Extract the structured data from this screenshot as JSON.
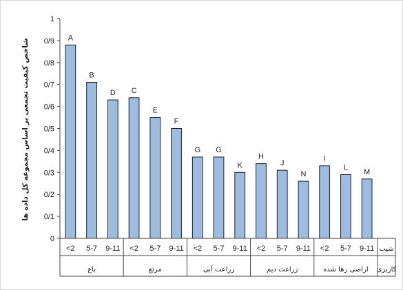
{
  "chart_data": {
    "type": "bar",
    "title": "",
    "ylabel": "شاخص کیفیت تجمعی بر اساس مجموعه کل داده ها",
    "ylim": [
      0,
      1
    ],
    "yticks": [
      "0",
      "0/1",
      "0/2",
      "0/3",
      "0/4",
      "0/5",
      "0/6",
      "0/7",
      "0/8",
      "0/9",
      "1"
    ],
    "slope_row_label": "شیب",
    "landuse_row_label": "کاربری",
    "bar_color": "#9dbce0",
    "groups": [
      {
        "name": "باغ",
        "bars": [
          {
            "slope": "<2",
            "value": 0.88,
            "letter": "A"
          },
          {
            "slope": "5-7",
            "value": 0.71,
            "letter": "B"
          },
          {
            "slope": "9-11",
            "value": 0.63,
            "letter": "D"
          }
        ]
      },
      {
        "name": "مرتع",
        "bars": [
          {
            "slope": "<2",
            "value": 0.64,
            "letter": "C"
          },
          {
            "slope": "5-7",
            "value": 0.55,
            "letter": "E"
          },
          {
            "slope": "9-11",
            "value": 0.5,
            "letter": "F"
          }
        ]
      },
      {
        "name": "زراعت آبی",
        "bars": [
          {
            "slope": "<2",
            "value": 0.37,
            "letter": "G"
          },
          {
            "slope": "5-7",
            "value": 0.37,
            "letter": "G"
          },
          {
            "slope": "9-11",
            "value": 0.3,
            "letter": "K"
          }
        ]
      },
      {
        "name": "زراعت دیم",
        "bars": [
          {
            "slope": "<2",
            "value": 0.34,
            "letter": "H"
          },
          {
            "slope": "5-7",
            "value": 0.31,
            "letter": "J"
          },
          {
            "slope": "9-11",
            "value": 0.26,
            "letter": "N"
          }
        ]
      },
      {
        "name": "اراضی رها شده",
        "bars": [
          {
            "slope": "<2",
            "value": 0.33,
            "letter": "I"
          },
          {
            "slope": "5-7",
            "value": 0.29,
            "letter": "L"
          },
          {
            "slope": "9-11",
            "value": 0.27,
            "letter": "M"
          }
        ]
      }
    ]
  }
}
